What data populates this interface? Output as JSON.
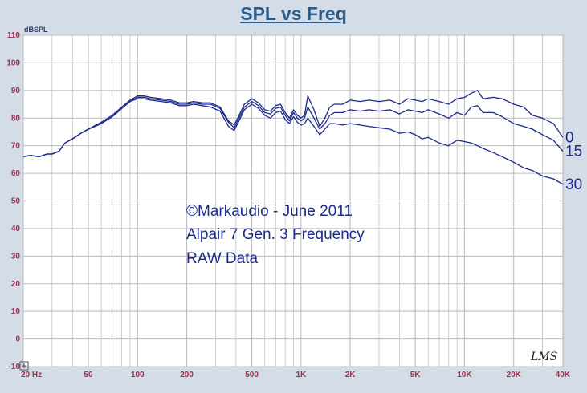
{
  "chart_data": {
    "type": "line",
    "title": "SPL vs Freq",
    "ylabel": "dBSPL",
    "xscale": "log",
    "xlim": [
      20,
      40000
    ],
    "ylim": [
      -10,
      110
    ],
    "grid": true,
    "x_tick_labels": [
      {
        "label": "20 Hz",
        "value": 20
      },
      {
        "label": "50",
        "value": 50
      },
      {
        "label": "100",
        "value": 100
      },
      {
        "label": "200",
        "value": 200
      },
      {
        "label": "500",
        "value": 500
      },
      {
        "label": "1K",
        "value": 1000
      },
      {
        "label": "2K",
        "value": 2000
      },
      {
        "label": "5K",
        "value": 5000
      },
      {
        "label": "10K",
        "value": 10000
      },
      {
        "label": "20K",
        "value": 20000
      },
      {
        "label": "40K",
        "value": 40000
      }
    ],
    "y_ticks": [
      110,
      100,
      90,
      80,
      70,
      60,
      50,
      40,
      30,
      20,
      10,
      0,
      -10
    ],
    "y_tick_labels": [
      "110",
      "100",
      "90",
      "80",
      "70",
      "60",
      "50",
      "40",
      "30",
      "20",
      "10",
      "0",
      "-10"
    ],
    "annotations": [
      "©Markaudio - June 2011",
      "Alpair 7 Gen. 3 Frequency",
      "RAW Data"
    ],
    "watermark": "LMS",
    "colors": {
      "series": "#1c2a8a",
      "background": "#d4dde7",
      "plot": "#ffffff",
      "grid": "#c4c4c4",
      "ticks": "#9a2f4f"
    },
    "series": [
      {
        "name": "0",
        "x": [
          20,
          22,
          25,
          28,
          30,
          33,
          36,
          40,
          45,
          50,
          60,
          70,
          80,
          90,
          100,
          110,
          120,
          140,
          160,
          180,
          200,
          220,
          250,
          280,
          320,
          360,
          390,
          410,
          450,
          500,
          550,
          600,
          650,
          700,
          750,
          800,
          850,
          900,
          950,
          1000,
          1050,
          1100,
          1200,
          1300,
          1400,
          1500,
          1600,
          1800,
          2000,
          2300,
          2600,
          3000,
          3500,
          4000,
          4500,
          5000,
          5500,
          6000,
          7000,
          8000,
          9000,
          10000,
          11000,
          12000,
          13000,
          15000,
          17000,
          20000,
          23000,
          26000,
          30000,
          35000,
          40000
        ],
        "y": [
          66,
          66.5,
          66,
          67,
          67,
          68,
          71,
          72.5,
          74.5,
          76,
          78.5,
          81,
          84,
          86.5,
          88,
          88,
          87.5,
          87,
          86.5,
          85.5,
          85.5,
          86,
          85.5,
          85.5,
          84,
          79,
          77.5,
          80,
          85,
          87,
          85.5,
          83,
          82.5,
          84.5,
          85,
          82,
          80,
          83,
          81,
          80,
          81,
          88,
          83,
          77,
          80,
          84,
          85,
          85,
          86.5,
          86,
          86.5,
          86,
          86.5,
          85,
          87,
          86.5,
          86,
          87,
          86,
          85,
          87,
          87.5,
          89,
          90,
          87,
          87.5,
          87,
          85,
          84,
          81,
          80,
          78,
          73
        ]
      },
      {
        "name": "15",
        "x": [
          20,
          22,
          25,
          28,
          30,
          33,
          36,
          40,
          45,
          50,
          60,
          70,
          80,
          90,
          100,
          110,
          120,
          140,
          160,
          180,
          200,
          220,
          250,
          280,
          320,
          360,
          390,
          410,
          450,
          500,
          550,
          600,
          650,
          700,
          750,
          800,
          850,
          900,
          950,
          1000,
          1050,
          1100,
          1200,
          1300,
          1400,
          1500,
          1600,
          1800,
          2000,
          2300,
          2600,
          3000,
          3500,
          4000,
          4500,
          5000,
          5500,
          6000,
          7000,
          8000,
          9000,
          10000,
          11000,
          12000,
          13000,
          15000,
          17000,
          20000,
          23000,
          26000,
          30000,
          35000,
          40000
        ],
        "y": [
          66,
          66.5,
          66,
          67,
          67,
          68,
          71,
          72.5,
          74.5,
          76,
          78,
          80.5,
          83.5,
          86,
          87.5,
          87.5,
          87,
          86.5,
          86,
          85,
          85,
          85.5,
          85,
          85,
          83.5,
          78.5,
          76.5,
          79,
          84,
          86,
          84.5,
          82,
          81.5,
          83.5,
          84,
          81,
          79,
          82,
          80,
          79,
          80,
          84,
          80,
          76,
          78,
          81,
          82,
          82,
          83,
          82.5,
          83,
          82.5,
          83,
          81.5,
          83,
          82.5,
          82,
          83,
          81.5,
          80,
          82,
          81,
          84,
          84.5,
          82,
          82,
          80.5,
          78,
          77,
          76,
          74,
          72,
          68
        ]
      },
      {
        "name": "30",
        "x": [
          20,
          22,
          25,
          28,
          30,
          33,
          36,
          40,
          45,
          50,
          60,
          70,
          80,
          90,
          100,
          110,
          120,
          140,
          160,
          180,
          200,
          220,
          250,
          280,
          320,
          360,
          390,
          410,
          450,
          500,
          550,
          600,
          650,
          700,
          750,
          800,
          850,
          900,
          950,
          1000,
          1050,
          1100,
          1200,
          1300,
          1400,
          1500,
          1600,
          1800,
          2000,
          2300,
          2600,
          3000,
          3500,
          4000,
          4500,
          5000,
          5500,
          6000,
          7000,
          8000,
          9000,
          10000,
          11000,
          12000,
          13000,
          15000,
          17000,
          20000,
          23000,
          26000,
          30000,
          35000,
          40000
        ],
        "y": [
          66,
          66.5,
          66,
          67,
          67,
          68,
          71,
          72.5,
          74.5,
          76,
          78,
          80.5,
          83.5,
          86,
          87,
          87,
          86.5,
          86,
          85.5,
          84.5,
          84.5,
          85,
          84.5,
          84,
          82.5,
          77,
          75.5,
          78,
          83,
          85,
          83.5,
          81,
          80,
          82,
          82.5,
          79.5,
          78,
          80.5,
          78.5,
          77.5,
          78,
          80,
          77,
          74,
          76,
          78,
          78,
          77.5,
          78,
          77.5,
          77,
          76.5,
          76,
          74.5,
          75,
          74,
          72.5,
          73,
          71,
          70,
          72,
          71.5,
          71,
          70,
          69,
          67.5,
          66,
          64,
          62,
          61,
          59,
          58,
          56
        ]
      }
    ]
  }
}
